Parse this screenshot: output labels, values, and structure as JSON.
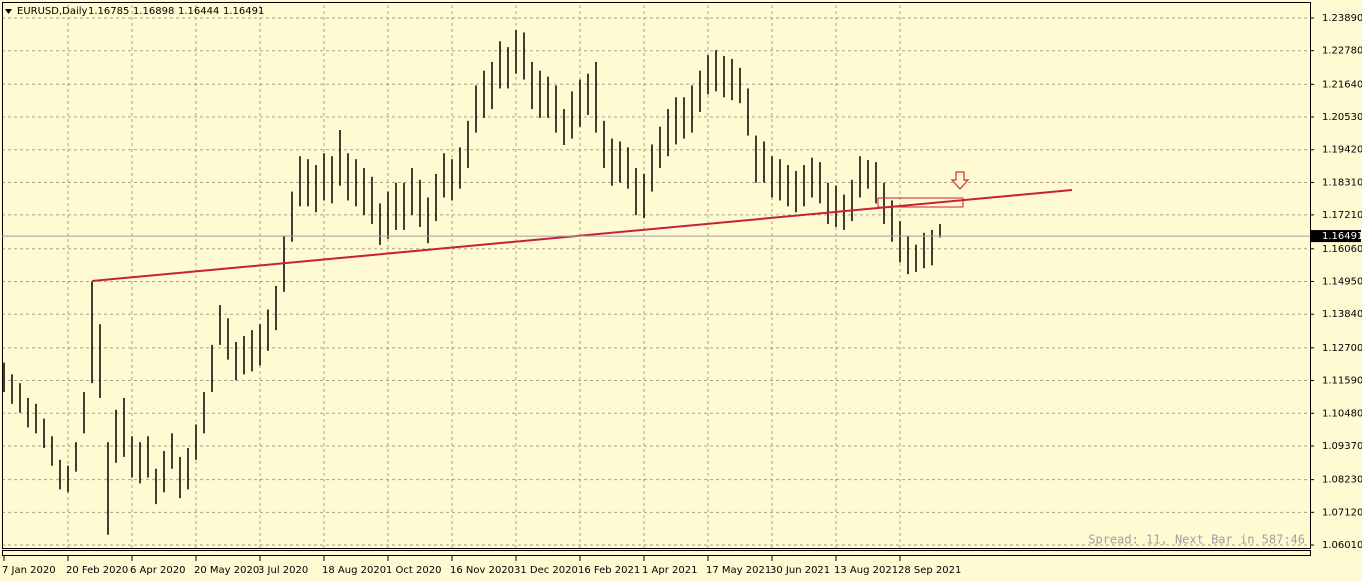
{
  "chart_data": {
    "type": "ohlc",
    "header": {
      "symbol": "EURUSD,Daily",
      "ohlc": [
        1.16785,
        1.16898,
        1.16444,
        1.16491
      ]
    },
    "status": "Spread: 11, Next Bar in 587:46",
    "color": "#000000",
    "grid": true,
    "categories": [
      "7 Jan 2020",
      null,
      null,
      null,
      null,
      null,
      null,
      null,
      "20 Feb 2020",
      null,
      null,
      null,
      null,
      null,
      null,
      null,
      "6 Apr 2020",
      null,
      null,
      null,
      null,
      null,
      null,
      null,
      "20 May 2020",
      null,
      null,
      null,
      null,
      null,
      null,
      null,
      "3 Jul 2020",
      null,
      null,
      null,
      null,
      null,
      null,
      null,
      "18 Aug 2020",
      null,
      null,
      null,
      null,
      null,
      null,
      null,
      "1 Oct 2020",
      null,
      null,
      null,
      null,
      null,
      null,
      null,
      "16 Nov 2020",
      null,
      null,
      null,
      null,
      null,
      null,
      null,
      "31 Dec 2020",
      null,
      null,
      null,
      null,
      null,
      null,
      null,
      "16 Feb 2021",
      null,
      null,
      null,
      null,
      null,
      null,
      null,
      "1 Apr 2021",
      null,
      null,
      null,
      null,
      null,
      null,
      null,
      "17 May 2021",
      null,
      null,
      null,
      null,
      null,
      null,
      null,
      "30 Jun 2021",
      null,
      null,
      null,
      null,
      null,
      null,
      null,
      "13 Aug 2021",
      null,
      null,
      null,
      null,
      null,
      null,
      null,
      "28 Sep 2021",
      null,
      null,
      null,
      null,
      null
    ],
    "high": [
      1.122,
      1.118,
      1.115,
      1.11,
      1.108,
      1.103,
      1.097,
      1.089,
      1.087,
      1.095,
      1.112,
      1.1495,
      1.135,
      1.095,
      1.106,
      1.11,
      1.097,
      1.095,
      1.097,
      1.086,
      1.092,
      1.098,
      1.09,
      1.093,
      1.101,
      1.112,
      1.128,
      1.1415,
      1.137,
      1.129,
      1.131,
      1.133,
      1.135,
      1.14,
      1.148,
      1.165,
      1.18,
      1.192,
      1.191,
      1.189,
      1.193,
      1.192,
      1.2009,
      1.193,
      1.191,
      1.188,
      1.185,
      1.176,
      1.18,
      1.183,
      1.183,
      1.188,
      1.184,
      1.178,
      1.186,
      1.193,
      1.191,
      1.195,
      1.204,
      1.216,
      1.221,
      1.224,
      1.231,
      1.229,
      1.2348,
      1.234,
      1.224,
      1.221,
      1.219,
      1.216,
      1.208,
      1.214,
      1.218,
      1.22,
      1.224,
      1.204,
      1.198,
      1.197,
      1.195,
      1.188,
      1.186,
      1.196,
      1.202,
      1.208,
      1.212,
      1.212,
      1.216,
      1.221,
      1.2263,
      1.228,
      1.226,
      1.225,
      1.222,
      1.215,
      1.199,
      1.197,
      1.192,
      1.191,
      1.189,
      1.187,
      1.189,
      1.1915,
      1.19,
      1.183,
      1.182,
      1.179,
      1.184,
      1.192,
      1.1907,
      1.19,
      1.183,
      1.177,
      1.17,
      1.165,
      1.162,
      1.166,
      1.167,
      1.16898
    ],
    "low": [
      1.112,
      1.108,
      1.105,
      1.1,
      1.098,
      1.093,
      1.087,
      1.079,
      1.078,
      1.085,
      1.098,
      1.115,
      1.11,
      1.0636,
      1.088,
      1.09,
      1.083,
      1.081,
      1.083,
      1.074,
      1.078,
      1.086,
      1.076,
      1.079,
      1.089,
      1.098,
      1.112,
      1.128,
      1.123,
      1.116,
      1.118,
      1.119,
      1.121,
      1.126,
      1.133,
      1.146,
      1.163,
      1.175,
      1.175,
      1.173,
      1.177,
      1.176,
      1.182,
      1.177,
      1.175,
      1.172,
      1.169,
      1.1619,
      1.164,
      1.167,
      1.167,
      1.172,
      1.168,
      1.1625,
      1.17,
      1.178,
      1.177,
      1.181,
      1.188,
      1.2,
      1.205,
      1.208,
      1.215,
      1.215,
      1.22,
      1.218,
      1.208,
      1.205,
      1.205,
      1.2,
      1.1958,
      1.198,
      1.202,
      1.206,
      1.2,
      1.188,
      1.182,
      1.183,
      1.181,
      1.172,
      1.171,
      1.18,
      1.188,
      1.192,
      1.196,
      1.198,
      1.2,
      1.207,
      1.213,
      1.214,
      1.212,
      1.211,
      1.21,
      1.199,
      1.183,
      1.183,
      1.178,
      1.177,
      1.175,
      1.173,
      1.175,
      1.178,
      1.176,
      1.169,
      1.168,
      1.167,
      1.17,
      1.178,
      1.181,
      1.176,
      1.169,
      1.163,
      1.156,
      1.152,
      1.1527,
      1.154,
      1.155,
      1.16444
    ],
    "ylim": [
      1.0591,
      1.2433
    ],
    "yticks": [
      {
        "value": 1.2389,
        "label": "1.23890"
      },
      {
        "value": 1.2278,
        "label": "1.22780"
      },
      {
        "value": 1.2164,
        "label": "1.21640"
      },
      {
        "value": 1.2053,
        "label": "1.20530"
      },
      {
        "value": 1.1942,
        "label": "1.19420"
      },
      {
        "value": 1.1831,
        "label": "1.18310"
      },
      {
        "value": 1.1721,
        "label": "1.17210"
      },
      {
        "value": 1.1606,
        "label": "1.16060"
      },
      {
        "value": 1.1495,
        "label": "1.14950"
      },
      {
        "value": 1.1384,
        "label": "1.13840"
      },
      {
        "value": 1.127,
        "label": "1.12700"
      },
      {
        "value": 1.1159,
        "label": "1.11590"
      },
      {
        "value": 1.1048,
        "label": "1.10480"
      },
      {
        "value": 1.0937,
        "label": "1.09370"
      },
      {
        "value": 1.0823,
        "label": "1.08230"
      },
      {
        "value": 1.0712,
        "label": "1.07120"
      },
      {
        "value": 1.0601,
        "label": "1.06010"
      }
    ]
  }
}
